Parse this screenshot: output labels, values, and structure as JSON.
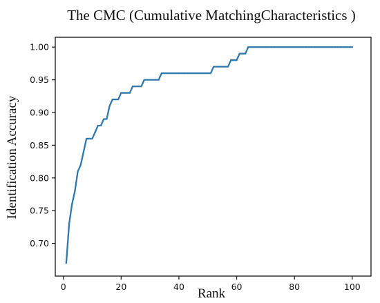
{
  "chart_data": {
    "type": "line",
    "title": "The CMC (Cumulative MatchingCharacteristics )",
    "xlabel": "Rank",
    "ylabel": "Identification Accuracy",
    "xlim": [
      -2.8,
      106.5
    ],
    "ylim": [
      0.65,
      1.015
    ],
    "xticks": [
      0,
      20,
      40,
      60,
      80,
      100
    ],
    "yticks": [
      0.7,
      0.75,
      0.8,
      0.85,
      0.9,
      0.95,
      1.0
    ],
    "xtick_labels": [
      "0",
      "20",
      "40",
      "60",
      "80",
      "100"
    ],
    "ytick_labels": [
      "0.70",
      "0.75",
      "0.80",
      "0.85",
      "0.90",
      "0.95",
      "1.00"
    ],
    "grid": false,
    "series": [
      {
        "color": "#2f78ad",
        "x": [
          1,
          2,
          3,
          4,
          5,
          6,
          7,
          8,
          9,
          10,
          11,
          12,
          13,
          14,
          15,
          16,
          17,
          18,
          19,
          20,
          21,
          22,
          23,
          24,
          25,
          26,
          27,
          28,
          29,
          30,
          31,
          32,
          33,
          34,
          35,
          36,
          37,
          38,
          39,
          40,
          41,
          42,
          43,
          44,
          45,
          46,
          47,
          48,
          49,
          50,
          51,
          52,
          53,
          54,
          55,
          56,
          57,
          58,
          59,
          60,
          61,
          62,
          63,
          64,
          65,
          66,
          67,
          68,
          69,
          70,
          71,
          72,
          73,
          74,
          75,
          76,
          77,
          78,
          79,
          80,
          81,
          82,
          83,
          84,
          85,
          86,
          87,
          88,
          89,
          90,
          91,
          92,
          93,
          94,
          95,
          96,
          97,
          98,
          99,
          100
        ],
        "y": [
          0.67,
          0.73,
          0.76,
          0.78,
          0.81,
          0.82,
          0.84,
          0.86,
          0.86,
          0.86,
          0.87,
          0.88,
          0.88,
          0.89,
          0.89,
          0.91,
          0.92,
          0.92,
          0.92,
          0.93,
          0.93,
          0.93,
          0.93,
          0.94,
          0.94,
          0.94,
          0.94,
          0.95,
          0.95,
          0.95,
          0.95,
          0.95,
          0.95,
          0.96,
          0.96,
          0.96,
          0.96,
          0.96,
          0.96,
          0.96,
          0.96,
          0.96,
          0.96,
          0.96,
          0.96,
          0.96,
          0.96,
          0.96,
          0.96,
          0.96,
          0.96,
          0.97,
          0.97,
          0.97,
          0.97,
          0.97,
          0.97,
          0.98,
          0.98,
          0.98,
          0.99,
          0.99,
          0.99,
          1.0,
          1.0,
          1.0,
          1.0,
          1.0,
          1.0,
          1.0,
          1.0,
          1.0,
          1.0,
          1.0,
          1.0,
          1.0,
          1.0,
          1.0,
          1.0,
          1.0,
          1.0,
          1.0,
          1.0,
          1.0,
          1.0,
          1.0,
          1.0,
          1.0,
          1.0,
          1.0,
          1.0,
          1.0,
          1.0,
          1.0,
          1.0,
          1.0,
          1.0,
          1.0,
          1.0,
          1.0
        ]
      }
    ]
  }
}
